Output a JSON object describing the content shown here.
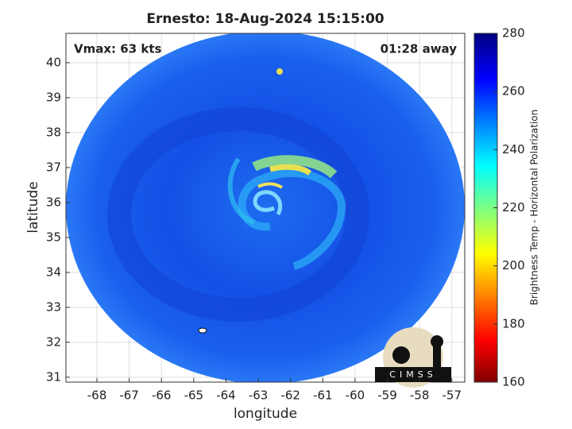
{
  "chart_data": {
    "type": "image",
    "title": "Ernesto: 18-Aug-2024 15:15:00",
    "xlabel": "longitude",
    "ylabel": "latitude",
    "annotations": [
      "Vmax: 63 kts",
      "01:28 away"
    ],
    "xlim": [
      -68.96,
      -56.6
    ],
    "ylim": [
      30.86,
      40.84
    ],
    "xticks": [
      -68,
      -67,
      -66,
      -65,
      -64,
      -63,
      -62,
      -61,
      -60,
      -59,
      -58,
      -57
    ],
    "yticks": [
      31,
      32,
      33,
      34,
      35,
      36,
      37,
      38,
      39,
      40
    ],
    "grid": true,
    "colorbar": {
      "label": "Brightness Temp - Horizontal Polarization",
      "clim": [
        160,
        280
      ],
      "ticks": [
        160,
        180,
        200,
        220,
        240,
        260,
        280
      ]
    },
    "logo_text": "CIMSS"
  }
}
